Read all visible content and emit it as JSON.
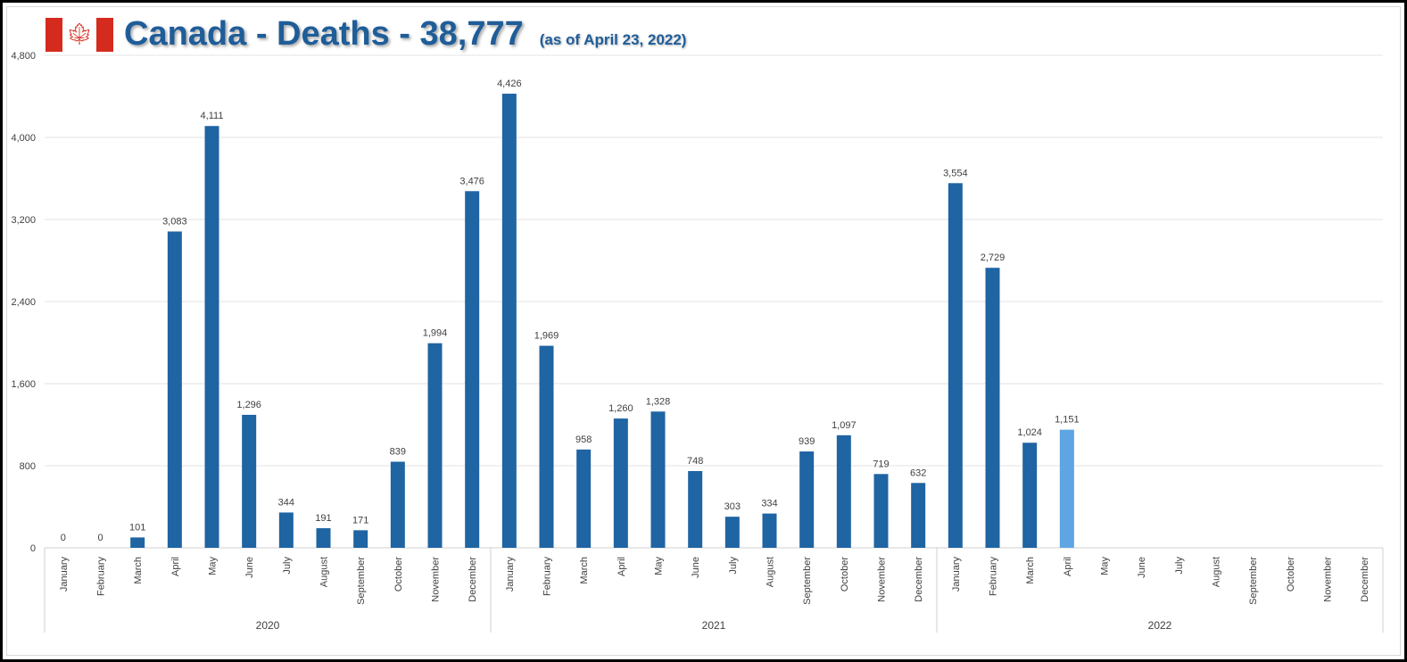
{
  "chart_data": {
    "type": "bar",
    "title": "Canada - Deaths - 38,777",
    "subtitle": "(as of April 23, 2022)",
    "xlabel": "",
    "ylabel": "",
    "ylim": [
      0,
      4800
    ],
    "yticks": [
      0,
      800,
      1600,
      2400,
      3200,
      4000,
      4800
    ],
    "ytick_labels": [
      "0",
      "800",
      "1,600",
      "2,400",
      "3,200",
      "4,000",
      "4,800"
    ],
    "grid": true,
    "groups": [
      "2020",
      "2021",
      "2022"
    ],
    "months": [
      "January",
      "February",
      "March",
      "April",
      "May",
      "June",
      "July",
      "August",
      "September",
      "October",
      "November",
      "December"
    ],
    "values": [
      [
        0,
        0,
        101,
        3083,
        4111,
        1296,
        344,
        191,
        171,
        839,
        1994,
        3476
      ],
      [
        4426,
        1969,
        958,
        1260,
        1328,
        748,
        303,
        334,
        939,
        1097,
        719,
        632
      ],
      [
        3554,
        2729,
        1024,
        1151,
        null,
        null,
        null,
        null,
        null,
        null,
        null,
        null
      ]
    ],
    "highlight": {
      "group": 2,
      "month": 3
    },
    "colors": {
      "bar": "#1f64a3",
      "highlight": "#5fa4e3",
      "grid": "#e3e3e3"
    }
  }
}
